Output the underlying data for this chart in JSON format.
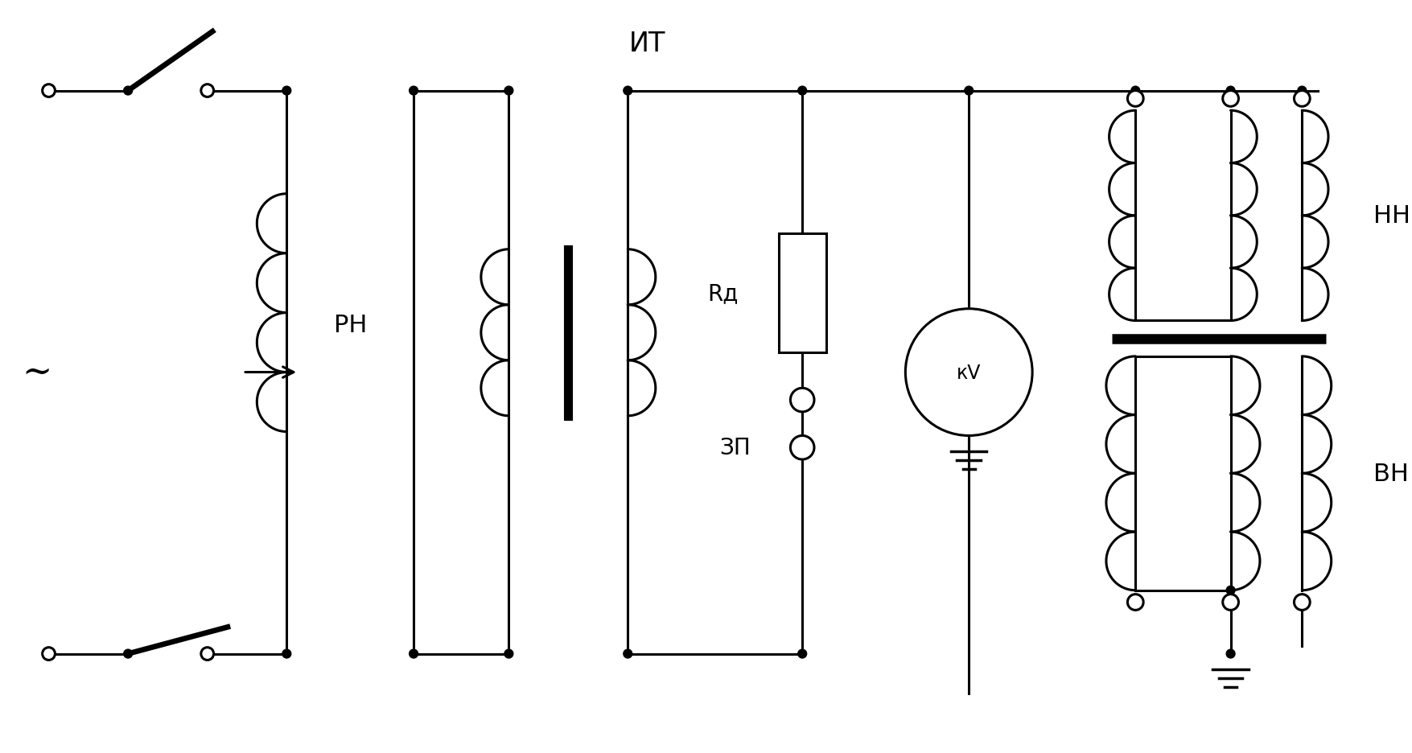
{
  "bg": "#ffffff",
  "lw": 2.2,
  "labels": {
    "IT": "ИТ",
    "RN": "РН",
    "tilde": "~",
    "Rd": "Rд",
    "ZP": "ЗП",
    "kV": "кV",
    "NN": "НН",
    "VN": "ВН"
  },
  "xlim": [
    0,
    176
  ],
  "ylim": [
    0,
    94
  ],
  "y_top": 83,
  "y_bot": 12,
  "x_sw_L": 6,
  "x_sw_piv": 16,
  "x_sw_R": 26,
  "x_rn_L": 36,
  "x_rn_R": 52,
  "x_it_L": 64,
  "x_it_R": 79,
  "x_rd": 101,
  "x_kv": 122,
  "x_dut_L": 143,
  "x_dut_M": 155,
  "x_dut_R": 164,
  "coil_n": 4,
  "dut_coil_n": 4
}
